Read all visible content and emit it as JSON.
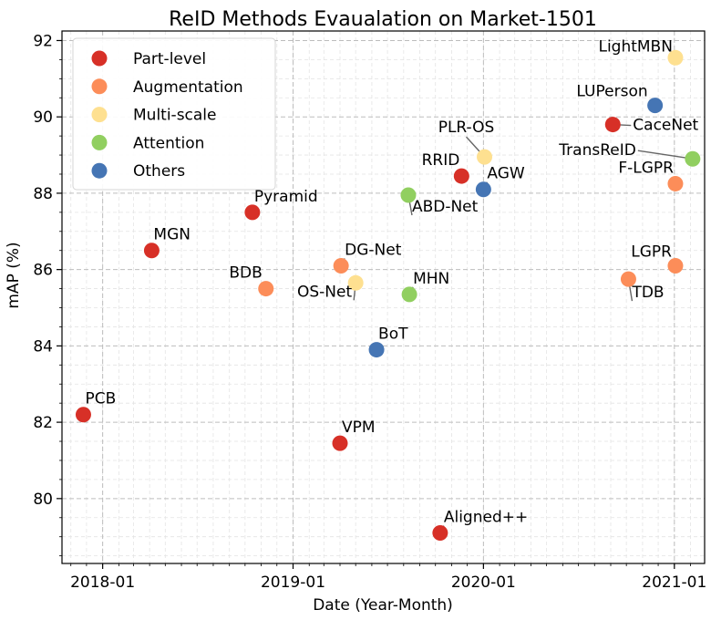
{
  "chart_data": {
    "type": "scatter",
    "title": "ReID Methods Evaualation on Market-1501",
    "xlabel": "Date (Year-Month)",
    "ylabel": "mAP (%)",
    "xlim": [
      "2017-10-15",
      "2021-02-28"
    ],
    "ylim": [
      78.3,
      92.25
    ],
    "x_ticks": [
      "2018-01",
      "2019-01",
      "2020-01",
      "2021-01"
    ],
    "y_ticks": [
      80,
      82,
      84,
      86,
      88,
      90,
      92
    ],
    "grid": true,
    "legend_position": "top-left",
    "categories": [
      {
        "name": "Part-level",
        "color": "#d73027"
      },
      {
        "name": "Augmentation",
        "color": "#fc8d59"
      },
      {
        "name": "Multi-scale",
        "color": "#fee090"
      },
      {
        "name": "Attention",
        "color": "#91cf60"
      },
      {
        "name": "Others",
        "color": "#4575b4"
      }
    ],
    "points": [
      {
        "label": "PCB",
        "x": "2017-11-25",
        "y": 82.2,
        "category": "Part-level"
      },
      {
        "label": "MGN",
        "x": "2018-04-05",
        "y": 86.5,
        "category": "Part-level"
      },
      {
        "label": "Pyramid",
        "x": "2018-10-15",
        "y": 87.5,
        "category": "Part-level"
      },
      {
        "label": "BDB",
        "x": "2018-11-10",
        "y": 85.5,
        "category": "Augmentation"
      },
      {
        "label": "VPM",
        "x": "2019-04-01",
        "y": 81.45,
        "category": "Part-level"
      },
      {
        "label": "DG-Net",
        "x": "2019-04-03",
        "y": 86.1,
        "category": "Augmentation"
      },
      {
        "label": "OS-Net",
        "x": "2019-05-01",
        "y": 85.65,
        "category": "Multi-scale"
      },
      {
        "label": "BoT",
        "x": "2019-06-10",
        "y": 83.9,
        "category": "Others"
      },
      {
        "label": "ABD-Net",
        "x": "2019-08-10",
        "y": 87.95,
        "category": "Attention"
      },
      {
        "label": "MHN",
        "x": "2019-08-12",
        "y": 85.35,
        "category": "Attention"
      },
      {
        "label": "Aligned++",
        "x": "2019-10-10",
        "y": 79.1,
        "category": "Part-level"
      },
      {
        "label": "RRID",
        "x": "2019-11-20",
        "y": 88.45,
        "category": "Part-level"
      },
      {
        "label": "AGW",
        "x": "2020-01-01",
        "y": 88.1,
        "category": "Others"
      },
      {
        "label": "PLR-OS",
        "x": "2020-01-03",
        "y": 88.95,
        "category": "Multi-scale"
      },
      {
        "label": "CaceNet",
        "x": "2020-09-05",
        "y": 89.8,
        "category": "Part-level"
      },
      {
        "label": "TDB",
        "x": "2020-10-05",
        "y": 85.75,
        "category": "Augmentation"
      },
      {
        "label": "LUPerson",
        "x": "2020-11-25",
        "y": 90.3,
        "category": "Others"
      },
      {
        "label": "LightMBN",
        "x": "2021-01-03",
        "y": 91.55,
        "category": "Multi-scale"
      },
      {
        "label": "LGPR",
        "x": "2021-01-03",
        "y": 86.1,
        "category": "Augmentation"
      },
      {
        "label": "F-LGPR",
        "x": "2021-01-03",
        "y": 88.25,
        "category": "Augmentation"
      },
      {
        "label": "TransReID",
        "x": "2021-02-05",
        "y": 88.9,
        "category": "Attention"
      }
    ]
  }
}
